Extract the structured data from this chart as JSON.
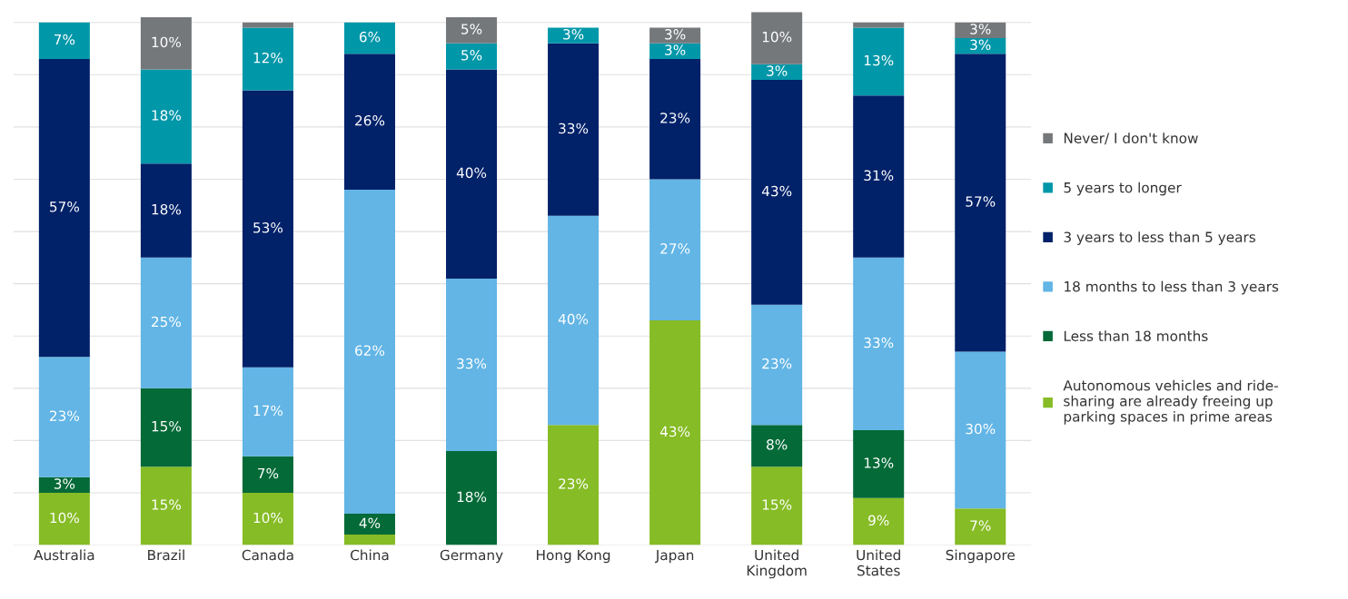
{
  "chart_data": {
    "type": "bar",
    "stacked": true,
    "categories": [
      "Australia",
      "Brazil",
      "Canada",
      "China",
      "Germany",
      "Hong Kong",
      "Japan",
      "United\nKingdom",
      "United\nStates",
      "Singapore"
    ],
    "series": [
      {
        "name": "Autonomous vehicles and ride-\nsharing are already freeing up\nparking spaces in prime areas",
        "color": "#86bc25",
        "values": [
          10,
          15,
          10,
          2,
          0,
          23,
          43,
          15,
          9,
          7
        ],
        "value_labels": [
          "10%",
          "15%",
          "10%",
          null,
          null,
          "23%",
          "43%",
          "15%",
          "9%",
          "7%"
        ]
      },
      {
        "name": "Less than 18 months",
        "color": "#046a38",
        "values": [
          3,
          15,
          7,
          4,
          18,
          0,
          0,
          8,
          13,
          0
        ],
        "value_labels": [
          "3%",
          "15%",
          "7%",
          "4%",
          "18%",
          null,
          null,
          "8%",
          "13%",
          null
        ]
      },
      {
        "name": "18 months to less than 3 years",
        "color": "#62b5e5",
        "values": [
          23,
          25,
          17,
          62,
          33,
          40,
          27,
          23,
          33,
          30
        ],
        "value_labels": [
          "23%",
          "25%",
          "17%",
          "62%",
          "33%",
          "40%",
          "27%",
          "23%",
          "33%",
          "30%"
        ]
      },
      {
        "name": "3 years to less than 5 years",
        "color": "#012169",
        "values": [
          57,
          18,
          53,
          26,
          40,
          33,
          23,
          43,
          31,
          57
        ],
        "value_labels": [
          "57%",
          "18%",
          "53%",
          "26%",
          "40%",
          "33%",
          "23%",
          "43%",
          "31%",
          "57%"
        ]
      },
      {
        "name": "5 years to longer",
        "color": "#0097a9",
        "values": [
          7,
          18,
          12,
          6,
          5,
          3,
          3,
          3,
          13,
          3
        ],
        "value_labels": [
          "7%",
          "18%",
          "12%",
          "6%",
          "5%",
          "3%",
          "3%",
          "3%",
          "13%",
          "3%"
        ]
      },
      {
        "name": "Never/ I don't know",
        "color": "#75787b",
        "values": [
          0,
          10,
          1,
          0,
          5,
          0,
          3,
          10,
          1,
          3
        ],
        "value_labels": [
          null,
          "10%",
          null,
          null,
          "5%",
          null,
          "3%",
          "10%",
          null,
          "3%"
        ]
      }
    ],
    "ylim": [
      0,
      102
    ],
    "yticks": [
      {
        "value": 0,
        "label": null
      },
      {
        "value": 10,
        "label": null
      },
      {
        "value": 20,
        "label": null
      },
      {
        "value": 30,
        "label": null
      },
      {
        "value": 40,
        "label": null
      },
      {
        "value": 50,
        "label": null
      },
      {
        "value": 60,
        "label": null
      },
      {
        "value": 70,
        "label": null
      },
      {
        "value": 80,
        "label": null
      },
      {
        "value": 90,
        "label": null
      },
      {
        "value": 100,
        "label": null
      }
    ],
    "grid": "y",
    "legend": "right",
    "tick_labels": "x"
  }
}
